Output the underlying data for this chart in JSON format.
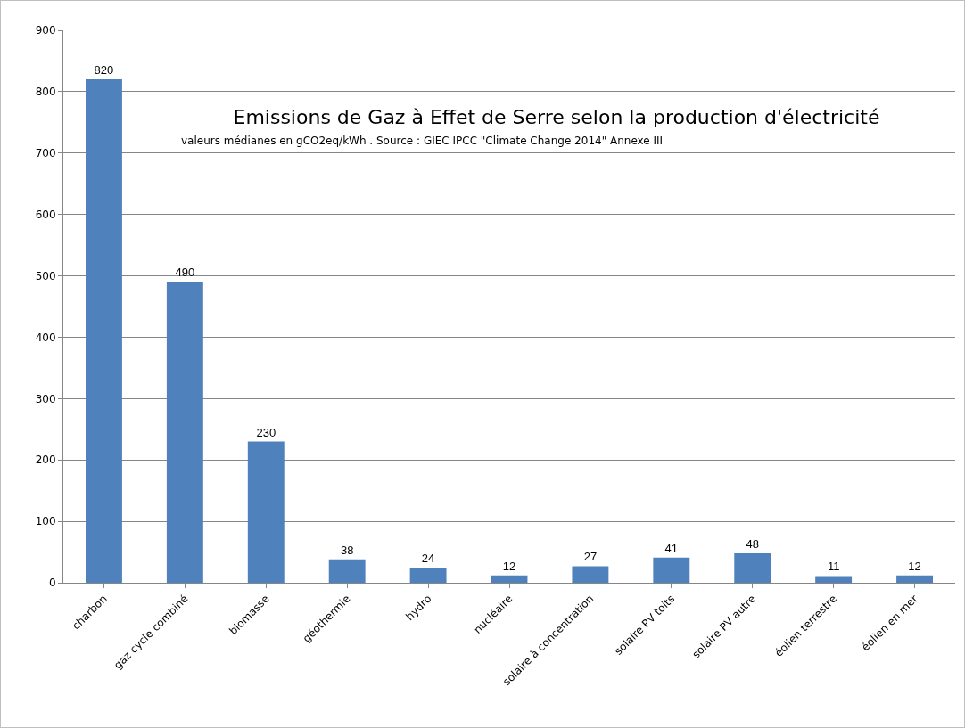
{
  "chart_data": {
    "type": "bar",
    "title": "Emissions de Gaz à Effet de Serre selon la production d'électricité",
    "subtitle": "valeurs médianes en gCO2eq/kWh . Source : GIEC IPCC \"Climate Change 2014\" Annexe III",
    "categories": [
      "charbon",
      "gaz cycle combiné",
      "biomasse",
      "géothermie",
      "hydro",
      "nucléaire",
      "solaire à concentration",
      "solaire PV toits",
      "solaire PV autre",
      "éolien terrestre",
      "éolien en mer"
    ],
    "values": [
      820,
      490,
      230,
      38,
      24,
      12,
      27,
      41,
      48,
      11,
      12
    ],
    "color": "#4f81bd",
    "ylim": [
      0,
      900
    ],
    "yticks": [
      0,
      100,
      200,
      300,
      400,
      500,
      600,
      700,
      800,
      900
    ],
    "grid": "y",
    "data_labels": true
  }
}
